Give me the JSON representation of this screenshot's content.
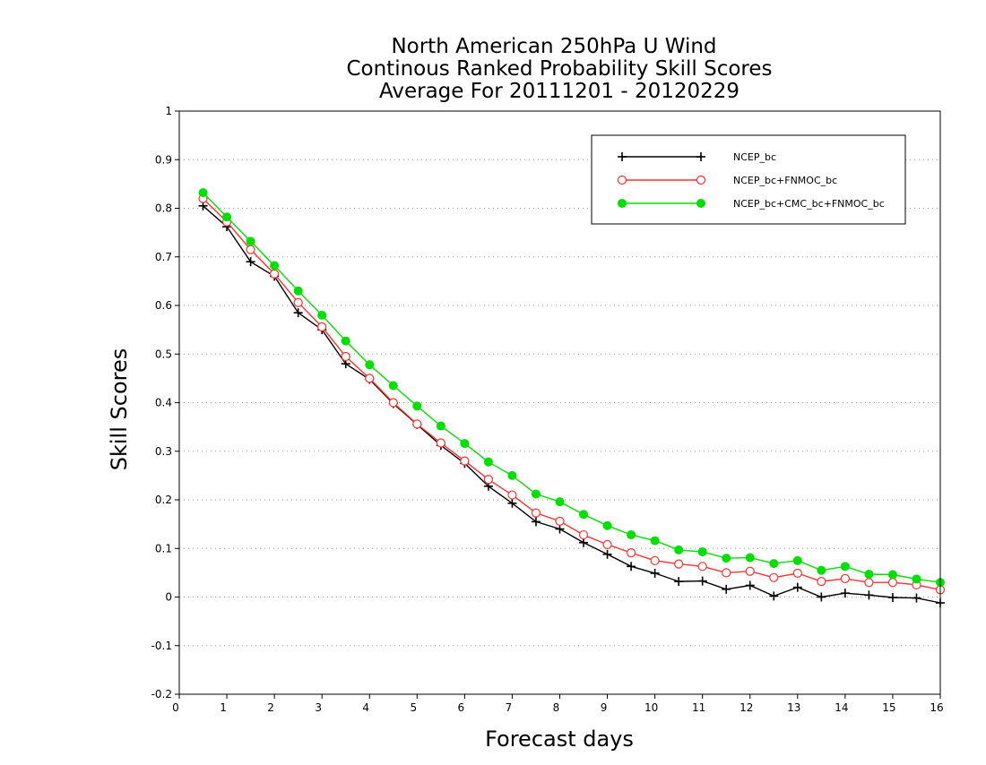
{
  "chart_data": {
    "type": "line",
    "title": [
      "North American 250hPa U Wind",
      "Continous Ranked Probability Skill Scores",
      "Average For 20111201 - 20120229"
    ],
    "xlabel": "Forecast days",
    "ylabel": "Skill Scores",
    "xlim": [
      0,
      16
    ],
    "ylim": [
      -0.2,
      1
    ],
    "xticks": [
      "0",
      "1",
      "2",
      "3",
      "4",
      "5",
      "6",
      "7",
      "8",
      "9",
      "10",
      "11",
      "12",
      "13",
      "14",
      "15",
      "16"
    ],
    "yticks": [
      "-0.2",
      "-0.1",
      "0",
      "0.1",
      "0.2",
      "0.3",
      "0.4",
      "0.5",
      "0.6",
      "0.7",
      "0.8",
      "0.9",
      "1"
    ],
    "grid": "horizontal dotted",
    "legend_position": "top-right",
    "x": [
      0.5,
      1,
      1.5,
      2,
      2.5,
      3,
      3.5,
      4,
      4.5,
      5,
      5.5,
      6,
      6.5,
      7,
      7.5,
      8,
      8.5,
      9,
      9.5,
      10,
      10.5,
      11,
      11.5,
      12,
      12.5,
      13,
      13.5,
      14,
      14.5,
      15,
      15.5,
      16
    ],
    "series": [
      {
        "name": "NCEP_bc",
        "color": "#000000",
        "marker": "plus",
        "values": [
          0.805,
          0.762,
          0.69,
          0.66,
          0.585,
          0.55,
          0.48,
          0.448,
          0.398,
          0.355,
          0.312,
          0.275,
          0.228,
          0.193,
          0.155,
          0.14,
          0.112,
          0.088,
          0.063,
          0.049,
          0.032,
          0.033,
          0.016,
          0.024,
          0.002,
          0.02,
          0.0,
          0.008,
          0.004,
          -0.001,
          -0.002,
          -0.012
        ]
      },
      {
        "name": "NCEP_bc+FNMOC_bc",
        "color": "#ff3030",
        "marker": "open-circle",
        "values": [
          0.82,
          0.772,
          0.715,
          0.665,
          0.606,
          0.556,
          0.495,
          0.45,
          0.4,
          0.356,
          0.317,
          0.28,
          0.242,
          0.21,
          0.173,
          0.156,
          0.128,
          0.108,
          0.091,
          0.075,
          0.068,
          0.063,
          0.05,
          0.053,
          0.04,
          0.049,
          0.032,
          0.038,
          0.03,
          0.03,
          0.025,
          0.015
        ]
      },
      {
        "name": "NCEP_bc+CMC_bc+FNMOC_bc",
        "color": "#00e000",
        "marker": "filled-circle",
        "values": [
          0.832,
          0.782,
          0.732,
          0.682,
          0.63,
          0.58,
          0.527,
          0.478,
          0.435,
          0.393,
          0.352,
          0.316,
          0.278,
          0.25,
          0.212,
          0.196,
          0.17,
          0.147,
          0.128,
          0.116,
          0.097,
          0.093,
          0.08,
          0.081,
          0.069,
          0.075,
          0.055,
          0.063,
          0.047,
          0.046,
          0.037,
          0.03
        ]
      }
    ]
  }
}
